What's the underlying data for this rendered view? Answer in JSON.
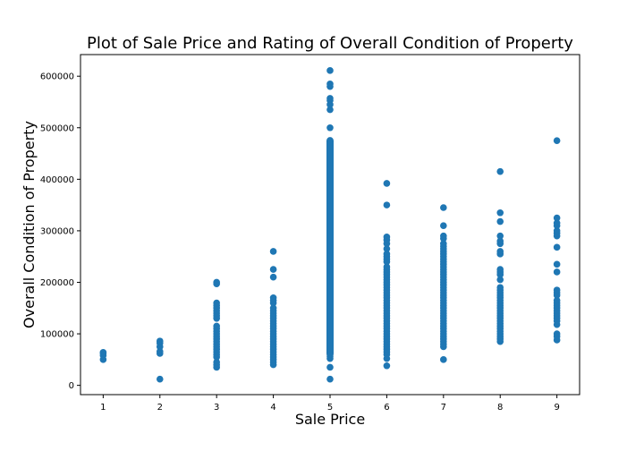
{
  "chart_data": {
    "type": "scatter",
    "title": "Plot of Sale Price and Rating of Overall Condition of Property",
    "xlabel": "Sale Price",
    "ylabel": "Overall Condition of Property",
    "xlim": [
      0.6,
      9.4
    ],
    "ylim": [
      -18000,
      642000
    ],
    "x_ticks": [
      1,
      2,
      3,
      4,
      5,
      6,
      7,
      8,
      9
    ],
    "y_ticks": [
      0,
      100000,
      200000,
      300000,
      400000,
      500000,
      600000
    ],
    "grid": false,
    "legend": "none",
    "marker_color": "#1f77b4",
    "points": [
      [
        1,
        50000
      ],
      [
        1,
        58000
      ],
      [
        1,
        62000
      ],
      [
        1,
        64000
      ],
      [
        2,
        12000
      ],
      [
        2,
        62000
      ],
      [
        2,
        66000
      ],
      [
        2,
        75000
      ],
      [
        2,
        82000
      ],
      [
        2,
        86000
      ],
      [
        3,
        35000
      ],
      [
        3,
        40000
      ],
      [
        3,
        45000
      ],
      [
        3,
        55000
      ],
      [
        3,
        60000
      ],
      [
        3,
        65000
      ],
      [
        3,
        70000
      ],
      [
        3,
        75000
      ],
      [
        3,
        80000
      ],
      [
        3,
        85000
      ],
      [
        3,
        90000
      ],
      [
        3,
        95000
      ],
      [
        3,
        100000
      ],
      [
        3,
        105000
      ],
      [
        3,
        110000
      ],
      [
        3,
        115000
      ],
      [
        3,
        130000
      ],
      [
        3,
        135000
      ],
      [
        3,
        140000
      ],
      [
        3,
        145000
      ],
      [
        3,
        150000
      ],
      [
        3,
        155000
      ],
      [
        3,
        160000
      ],
      [
        3,
        197000
      ],
      [
        3,
        200000
      ],
      [
        4,
        40000
      ],
      [
        4,
        45000
      ],
      [
        4,
        50000
      ],
      [
        4,
        55000
      ],
      [
        4,
        60000
      ],
      [
        4,
        65000
      ],
      [
        4,
        70000
      ],
      [
        4,
        75000
      ],
      [
        4,
        80000
      ],
      [
        4,
        85000
      ],
      [
        4,
        90000
      ],
      [
        4,
        95000
      ],
      [
        4,
        100000
      ],
      [
        4,
        105000
      ],
      [
        4,
        110000
      ],
      [
        4,
        115000
      ],
      [
        4,
        120000
      ],
      [
        4,
        125000
      ],
      [
        4,
        130000
      ],
      [
        4,
        135000
      ],
      [
        4,
        140000
      ],
      [
        4,
        145000
      ],
      [
        4,
        150000
      ],
      [
        4,
        160000
      ],
      [
        4,
        165000
      ],
      [
        4,
        170000
      ],
      [
        4,
        210000
      ],
      [
        4,
        225000
      ],
      [
        4,
        260000
      ],
      [
        5,
        12000
      ],
      [
        5,
        35000
      ],
      [
        5,
        52000
      ],
      [
        5,
        56000
      ],
      [
        5,
        60000
      ],
      [
        5,
        500000
      ],
      [
        5,
        535000
      ],
      [
        5,
        545000
      ],
      [
        5,
        553000
      ],
      [
        5,
        557000
      ],
      [
        5,
        580000
      ],
      [
        5,
        585000
      ],
      [
        5,
        611000
      ],
      [
        6,
        38000
      ],
      [
        6,
        52000
      ],
      [
        6,
        60000
      ],
      [
        6,
        65000
      ],
      [
        6,
        70000
      ],
      [
        6,
        75000
      ],
      [
        6,
        80000
      ],
      [
        6,
        85000
      ],
      [
        6,
        90000
      ],
      [
        6,
        95000
      ],
      [
        6,
        100000
      ],
      [
        6,
        105000
      ],
      [
        6,
        110000
      ],
      [
        6,
        115000
      ],
      [
        6,
        120000
      ],
      [
        6,
        125000
      ],
      [
        6,
        130000
      ],
      [
        6,
        135000
      ],
      [
        6,
        140000
      ],
      [
        6,
        145000
      ],
      [
        6,
        150000
      ],
      [
        6,
        155000
      ],
      [
        6,
        160000
      ],
      [
        6,
        165000
      ],
      [
        6,
        170000
      ],
      [
        6,
        175000
      ],
      [
        6,
        180000
      ],
      [
        6,
        185000
      ],
      [
        6,
        190000
      ],
      [
        6,
        195000
      ],
      [
        6,
        200000
      ],
      [
        6,
        205000
      ],
      [
        6,
        210000
      ],
      [
        6,
        215000
      ],
      [
        6,
        220000
      ],
      [
        6,
        225000
      ],
      [
        6,
        230000
      ],
      [
        6,
        240000
      ],
      [
        6,
        245000
      ],
      [
        6,
        250000
      ],
      [
        6,
        255000
      ],
      [
        6,
        265000
      ],
      [
        6,
        275000
      ],
      [
        6,
        282000
      ],
      [
        6,
        288000
      ],
      [
        6,
        350000
      ],
      [
        6,
        392000
      ],
      [
        7,
        50000
      ],
      [
        7,
        75000
      ],
      [
        7,
        80000
      ],
      [
        7,
        85000
      ],
      [
        7,
        90000
      ],
      [
        7,
        95000
      ],
      [
        7,
        100000
      ],
      [
        7,
        105000
      ],
      [
        7,
        110000
      ],
      [
        7,
        115000
      ],
      [
        7,
        120000
      ],
      [
        7,
        125000
      ],
      [
        7,
        130000
      ],
      [
        7,
        135000
      ],
      [
        7,
        140000
      ],
      [
        7,
        145000
      ],
      [
        7,
        150000
      ],
      [
        7,
        155000
      ],
      [
        7,
        160000
      ],
      [
        7,
        165000
      ],
      [
        7,
        170000
      ],
      [
        7,
        175000
      ],
      [
        7,
        180000
      ],
      [
        7,
        185000
      ],
      [
        7,
        190000
      ],
      [
        7,
        195000
      ],
      [
        7,
        200000
      ],
      [
        7,
        205000
      ],
      [
        7,
        210000
      ],
      [
        7,
        215000
      ],
      [
        7,
        220000
      ],
      [
        7,
        225000
      ],
      [
        7,
        230000
      ],
      [
        7,
        235000
      ],
      [
        7,
        240000
      ],
      [
        7,
        245000
      ],
      [
        7,
        250000
      ],
      [
        7,
        255000
      ],
      [
        7,
        260000
      ],
      [
        7,
        265000
      ],
      [
        7,
        270000
      ],
      [
        7,
        275000
      ],
      [
        7,
        285000
      ],
      [
        7,
        290000
      ],
      [
        7,
        310000
      ],
      [
        7,
        345000
      ],
      [
        8,
        85000
      ],
      [
        8,
        90000
      ],
      [
        8,
        95000
      ],
      [
        8,
        100000
      ],
      [
        8,
        105000
      ],
      [
        8,
        110000
      ],
      [
        8,
        115000
      ],
      [
        8,
        120000
      ],
      [
        8,
        125000
      ],
      [
        8,
        130000
      ],
      [
        8,
        135000
      ],
      [
        8,
        140000
      ],
      [
        8,
        145000
      ],
      [
        8,
        150000
      ],
      [
        8,
        155000
      ],
      [
        8,
        160000
      ],
      [
        8,
        165000
      ],
      [
        8,
        170000
      ],
      [
        8,
        175000
      ],
      [
        8,
        180000
      ],
      [
        8,
        185000
      ],
      [
        8,
        190000
      ],
      [
        8,
        205000
      ],
      [
        8,
        215000
      ],
      [
        8,
        220000
      ],
      [
        8,
        225000
      ],
      [
        8,
        255000
      ],
      [
        8,
        260000
      ],
      [
        8,
        275000
      ],
      [
        8,
        280000
      ],
      [
        8,
        290000
      ],
      [
        8,
        318000
      ],
      [
        8,
        335000
      ],
      [
        8,
        415000
      ],
      [
        9,
        88000
      ],
      [
        9,
        95000
      ],
      [
        9,
        100000
      ],
      [
        9,
        118000
      ],
      [
        9,
        125000
      ],
      [
        9,
        130000
      ],
      [
        9,
        135000
      ],
      [
        9,
        140000
      ],
      [
        9,
        145000
      ],
      [
        9,
        150000
      ],
      [
        9,
        155000
      ],
      [
        9,
        160000
      ],
      [
        9,
        165000
      ],
      [
        9,
        175000
      ],
      [
        9,
        180000
      ],
      [
        9,
        185000
      ],
      [
        9,
        220000
      ],
      [
        9,
        235000
      ],
      [
        9,
        268000
      ],
      [
        9,
        290000
      ],
      [
        9,
        295000
      ],
      [
        9,
        300000
      ],
      [
        9,
        310000
      ],
      [
        9,
        315000
      ],
      [
        9,
        325000
      ],
      [
        9,
        475000
      ]
    ],
    "dense_ranges": [
      {
        "x": 5,
        "from": 62000,
        "to": 475000
      }
    ]
  }
}
